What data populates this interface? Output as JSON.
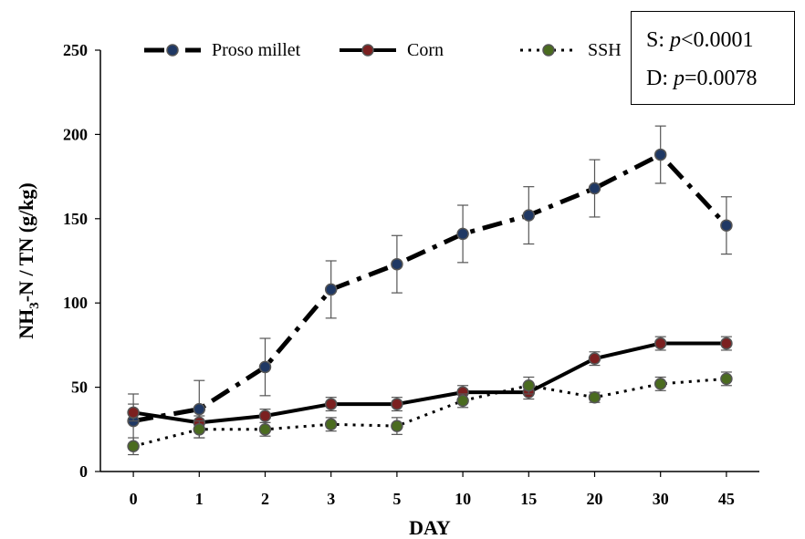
{
  "chart_data": {
    "type": "line",
    "categories": [
      "0",
      "1",
      "2",
      "3",
      "5",
      "10",
      "15",
      "20",
      "30",
      "45"
    ],
    "xlabel": "DAY",
    "ylabel": "NH3-N / TN (g/kg)",
    "ylabel_parts": {
      "pre": "NH",
      "sub": "3",
      "post": "-N / TN (g/kg)"
    },
    "ylim": [
      0,
      250
    ],
    "yticks": [
      0,
      50,
      100,
      150,
      200,
      250
    ],
    "grid": false,
    "legend_position": "top",
    "series": [
      {
        "name": "Proso millet",
        "style": "dash-dot",
        "marker_fill": "#1f3864",
        "values": [
          30,
          37,
          62,
          108,
          123,
          141,
          152,
          168,
          188,
          146
        ],
        "error": [
          16,
          17,
          17,
          17,
          17,
          17,
          17,
          17,
          17,
          17
        ]
      },
      {
        "name": "Corn",
        "style": "solid",
        "marker_fill": "#7b2020",
        "values": [
          35,
          29,
          33,
          40,
          40,
          47,
          47,
          67,
          76,
          76
        ],
        "error": [
          5,
          4,
          4,
          4,
          4,
          4,
          4,
          4,
          4,
          4
        ]
      },
      {
        "name": "SSH",
        "style": "dotted",
        "marker_fill": "#4a6b1f",
        "values": [
          15,
          25,
          25,
          28,
          27,
          42,
          51,
          44,
          52,
          55
        ],
        "error": [
          5,
          5,
          4,
          4,
          5,
          4,
          5,
          3,
          4,
          4
        ]
      }
    ],
    "annotation": {
      "line1_prefix": "S: ",
      "line1_var": "p",
      "line1_rest": "<0.0001",
      "line2_prefix": "D: ",
      "line2_var": "p",
      "line2_rest": "=0.0078"
    }
  }
}
